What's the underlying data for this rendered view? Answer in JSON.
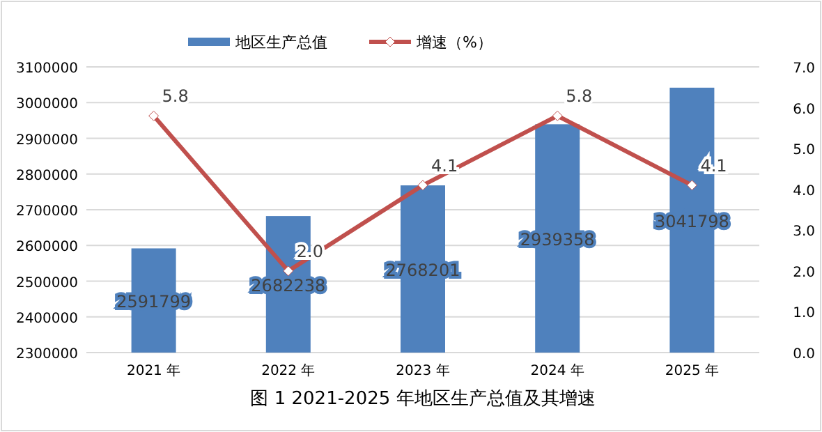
{
  "chart_data": {
    "type": "bar",
    "annotations": [
      "图 1 2021-2025 年地区生产总值及其增速"
    ],
    "categories": [
      "2021 年",
      "2022 年",
      "2023 年",
      "2024 年",
      "2025 年"
    ],
    "series": [
      {
        "name": "地区生产总值",
        "color": "#4f81bd",
        "values": [
          2591799,
          2682238,
          2768201,
          2939358,
          3041798
        ]
      },
      {
        "name": "增速（%）",
        "type": "line",
        "axis": "y2",
        "color": "#c0504d",
        "marker": "diamond",
        "values": [
          5.8,
          2.0,
          4.1,
          5.8,
          4.1
        ],
        "value_labels": [
          "5.8",
          "2.0",
          "4.1",
          "5.8",
          "4.1"
        ]
      }
    ],
    "data_labels": true,
    "ylim": [
      2300000,
      3100000
    ],
    "yticks": [
      2300000,
      2400000,
      2500000,
      2600000,
      2700000,
      2800000,
      2900000,
      3000000,
      3100000
    ],
    "y2lim": [
      0,
      7
    ],
    "y2ticks": [
      {
        "value": 0,
        "label": "0.0"
      },
      {
        "value": 1,
        "label": "1.0"
      },
      {
        "value": 2,
        "label": "2.0"
      },
      {
        "value": 3,
        "label": "3.0"
      },
      {
        "value": 4,
        "label": "4.0"
      },
      {
        "value": 5,
        "label": "5.0"
      },
      {
        "value": 6,
        "label": "6.0"
      },
      {
        "value": 7,
        "label": "7.0"
      }
    ],
    "grid": "y",
    "legend": "top"
  }
}
